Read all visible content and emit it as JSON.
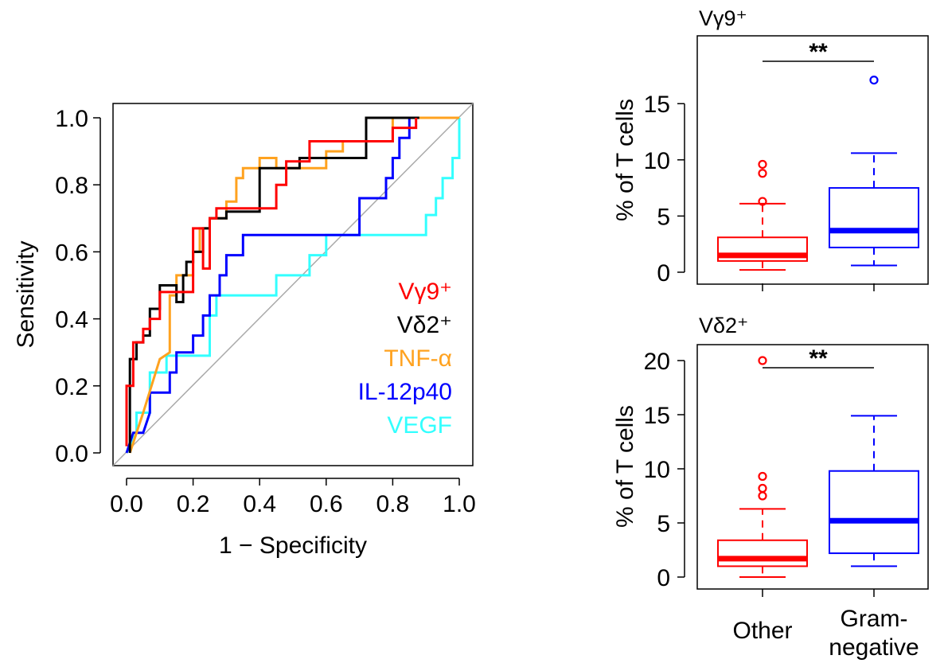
{
  "chart_data": [
    {
      "type": "line",
      "subtype": "roc",
      "title": "",
      "xlabel": "1 − Specificity",
      "ylabel": "Sensitivity",
      "xlim": [
        0,
        1
      ],
      "ylim": [
        0,
        1
      ],
      "x_ticks": [
        "0.0",
        "0.2",
        "0.4",
        "0.6",
        "0.8",
        "1.0"
      ],
      "y_ticks": [
        "0.0",
        "0.2",
        "0.4",
        "0.6",
        "0.8",
        "1.0"
      ],
      "grid": false,
      "reference_diagonal": true,
      "legend_position": "bottom-right",
      "series": [
        {
          "name": "Vγ9⁺",
          "color": "#ff0000",
          "x": [
            0,
            0,
            0.02,
            0.02,
            0.05,
            0.05,
            0.07,
            0.07,
            0.1,
            0.1,
            0.2,
            0.2,
            0.23,
            0.23,
            0.25,
            0.25,
            0.27,
            0.27,
            0.3,
            0.3,
            0.45,
            0.45,
            0.48,
            0.48,
            0.55,
            0.55,
            0.65,
            0.65,
            0.8,
            0.8,
            0.87,
            0.87
          ],
          "y": [
            0.02,
            0.2,
            0.2,
            0.33,
            0.33,
            0.37,
            0.37,
            0.4,
            0.4,
            0.48,
            0.48,
            0.67,
            0.67,
            0.55,
            0.55,
            0.7,
            0.7,
            0.73,
            0.73,
            0.73,
            0.73,
            0.8,
            0.8,
            0.87,
            0.87,
            0.93,
            0.93,
            0.93,
            0.93,
            0.97,
            0.97,
            1
          ]
        },
        {
          "name": "Vδ2⁺",
          "color": "#000000",
          "x": [
            0.01,
            0.01,
            0.03,
            0.03,
            0.05,
            0.05,
            0.07,
            0.07,
            0.1,
            0.1,
            0.15,
            0.15,
            0.17,
            0.17,
            0.18,
            0.18,
            0.2,
            0.2,
            0.23,
            0.23,
            0.25,
            0.25,
            0.3,
            0.3,
            0.4,
            0.4,
            0.52,
            0.52,
            0.72,
            0.72,
            0.88,
            0.88
          ],
          "y": [
            0,
            0.28,
            0.28,
            0.33,
            0.33,
            0.35,
            0.35,
            0.43,
            0.43,
            0.5,
            0.5,
            0.45,
            0.45,
            0.53,
            0.53,
            0.57,
            0.57,
            0.6,
            0.6,
            0.67,
            0.67,
            0.7,
            0.7,
            0.72,
            0.72,
            0.85,
            0.85,
            0.88,
            0.88,
            1,
            1,
            1
          ]
        },
        {
          "name": "TNF-α",
          "color": "#ffa21f",
          "x": [
            0.01,
            0.05,
            0.1,
            0.13,
            0.13,
            0.15,
            0.15,
            0.2,
            0.2,
            0.22,
            0.22,
            0.25,
            0.25,
            0.3,
            0.3,
            0.33,
            0.33,
            0.35,
            0.35,
            0.4,
            0.4,
            0.45,
            0.45,
            0.6,
            0.6,
            0.65,
            0.65,
            0.8,
            0.8,
            1
          ],
          "y": [
            0,
            0.12,
            0.28,
            0.3,
            0.47,
            0.47,
            0.53,
            0.53,
            0.6,
            0.6,
            0.67,
            0.67,
            0.7,
            0.7,
            0.75,
            0.75,
            0.82,
            0.82,
            0.85,
            0.85,
            0.88,
            0.88,
            0.85,
            0.85,
            0.9,
            0.9,
            0.93,
            0.93,
            1,
            1
          ]
        },
        {
          "name": "IL-12p40",
          "color": "#0000ff",
          "x": [
            0,
            0.02,
            0.05,
            0.07,
            0.07,
            0.13,
            0.13,
            0.15,
            0.15,
            0.2,
            0.2,
            0.23,
            0.23,
            0.25,
            0.25,
            0.28,
            0.28,
            0.3,
            0.3,
            0.35,
            0.35,
            0.42,
            0.42,
            0.45,
            0.45,
            0.7,
            0.7,
            0.78,
            0.78,
            0.8,
            0.8,
            0.82,
            0.82,
            0.85,
            0.85,
            0.88
          ],
          "y": [
            0,
            0.06,
            0.06,
            0.12,
            0.18,
            0.18,
            0.24,
            0.24,
            0.3,
            0.3,
            0.35,
            0.35,
            0.41,
            0.41,
            0.47,
            0.47,
            0.53,
            0.53,
            0.59,
            0.59,
            0.65,
            0.65,
            0.65,
            0.65,
            0.65,
            0.65,
            0.76,
            0.76,
            0.82,
            0.82,
            0.88,
            0.88,
            0.94,
            0.94,
            1,
            1
          ]
        },
        {
          "name": "VEGF",
          "color": "#33ffff",
          "x": [
            0,
            0.03,
            0.03,
            0.07,
            0.07,
            0.12,
            0.12,
            0.25,
            0.25,
            0.27,
            0.27,
            0.45,
            0.45,
            0.55,
            0.55,
            0.6,
            0.6,
            0.7,
            0.7,
            0.9,
            0.9,
            0.93,
            0.93,
            0.95,
            0.95,
            0.98,
            0.98,
            1,
            1
          ],
          "y": [
            0,
            0.06,
            0.12,
            0.12,
            0.24,
            0.24,
            0.29,
            0.29,
            0.41,
            0.41,
            0.47,
            0.47,
            0.53,
            0.53,
            0.59,
            0.59,
            0.65,
            0.65,
            0.65,
            0.65,
            0.71,
            0.71,
            0.76,
            0.76,
            0.82,
            0.82,
            0.88,
            0.88,
            1
          ]
        }
      ]
    },
    {
      "type": "box",
      "title": "Vγ9⁺",
      "xlabel": "",
      "ylabel": "% of T cells",
      "ylim": [
        0,
        17
      ],
      "y_ticks": [
        0,
        5,
        10,
        15
      ],
      "categories": [
        "Other",
        "Gram-negative"
      ],
      "category_display": [
        [
          "Other"
        ],
        [
          "Gram-",
          "negative"
        ]
      ],
      "annotation": "**",
      "boxes": [
        {
          "name": "Other",
          "color": "#ff0000",
          "min": 0.2,
          "q1": 1.0,
          "median": 1.5,
          "q3": 3.1,
          "max": 6.1,
          "outliers": [
            6.3,
            8.8,
            9.6
          ]
        },
        {
          "name": "Gram-negative",
          "color": "#0000ff",
          "min": 0.6,
          "q1": 2.2,
          "median": 3.7,
          "q3": 7.5,
          "max": 10.6,
          "outliers": [
            17.1
          ]
        }
      ]
    },
    {
      "type": "box",
      "title": "Vδ2⁺",
      "xlabel": "",
      "ylabel": "% of T cells",
      "ylim": [
        0,
        20
      ],
      "y_ticks": [
        0,
        5,
        10,
        15,
        20
      ],
      "categories": [
        "Other",
        "Gram-negative"
      ],
      "category_display": [
        [
          "Other"
        ],
        [
          "Gram-",
          "negative"
        ]
      ],
      "annotation": "**",
      "boxes": [
        {
          "name": "Other",
          "color": "#ff0000",
          "min": 0.0,
          "q1": 1.0,
          "median": 1.7,
          "q3": 3.4,
          "max": 6.3,
          "outliers": [
            7.5,
            8.2,
            9.3,
            20.0
          ]
        },
        {
          "name": "Gram-negative",
          "color": "#0000ff",
          "min": 1.0,
          "q1": 2.2,
          "median": 5.2,
          "q3": 9.8,
          "max": 14.9,
          "outliers": []
        }
      ]
    }
  ]
}
